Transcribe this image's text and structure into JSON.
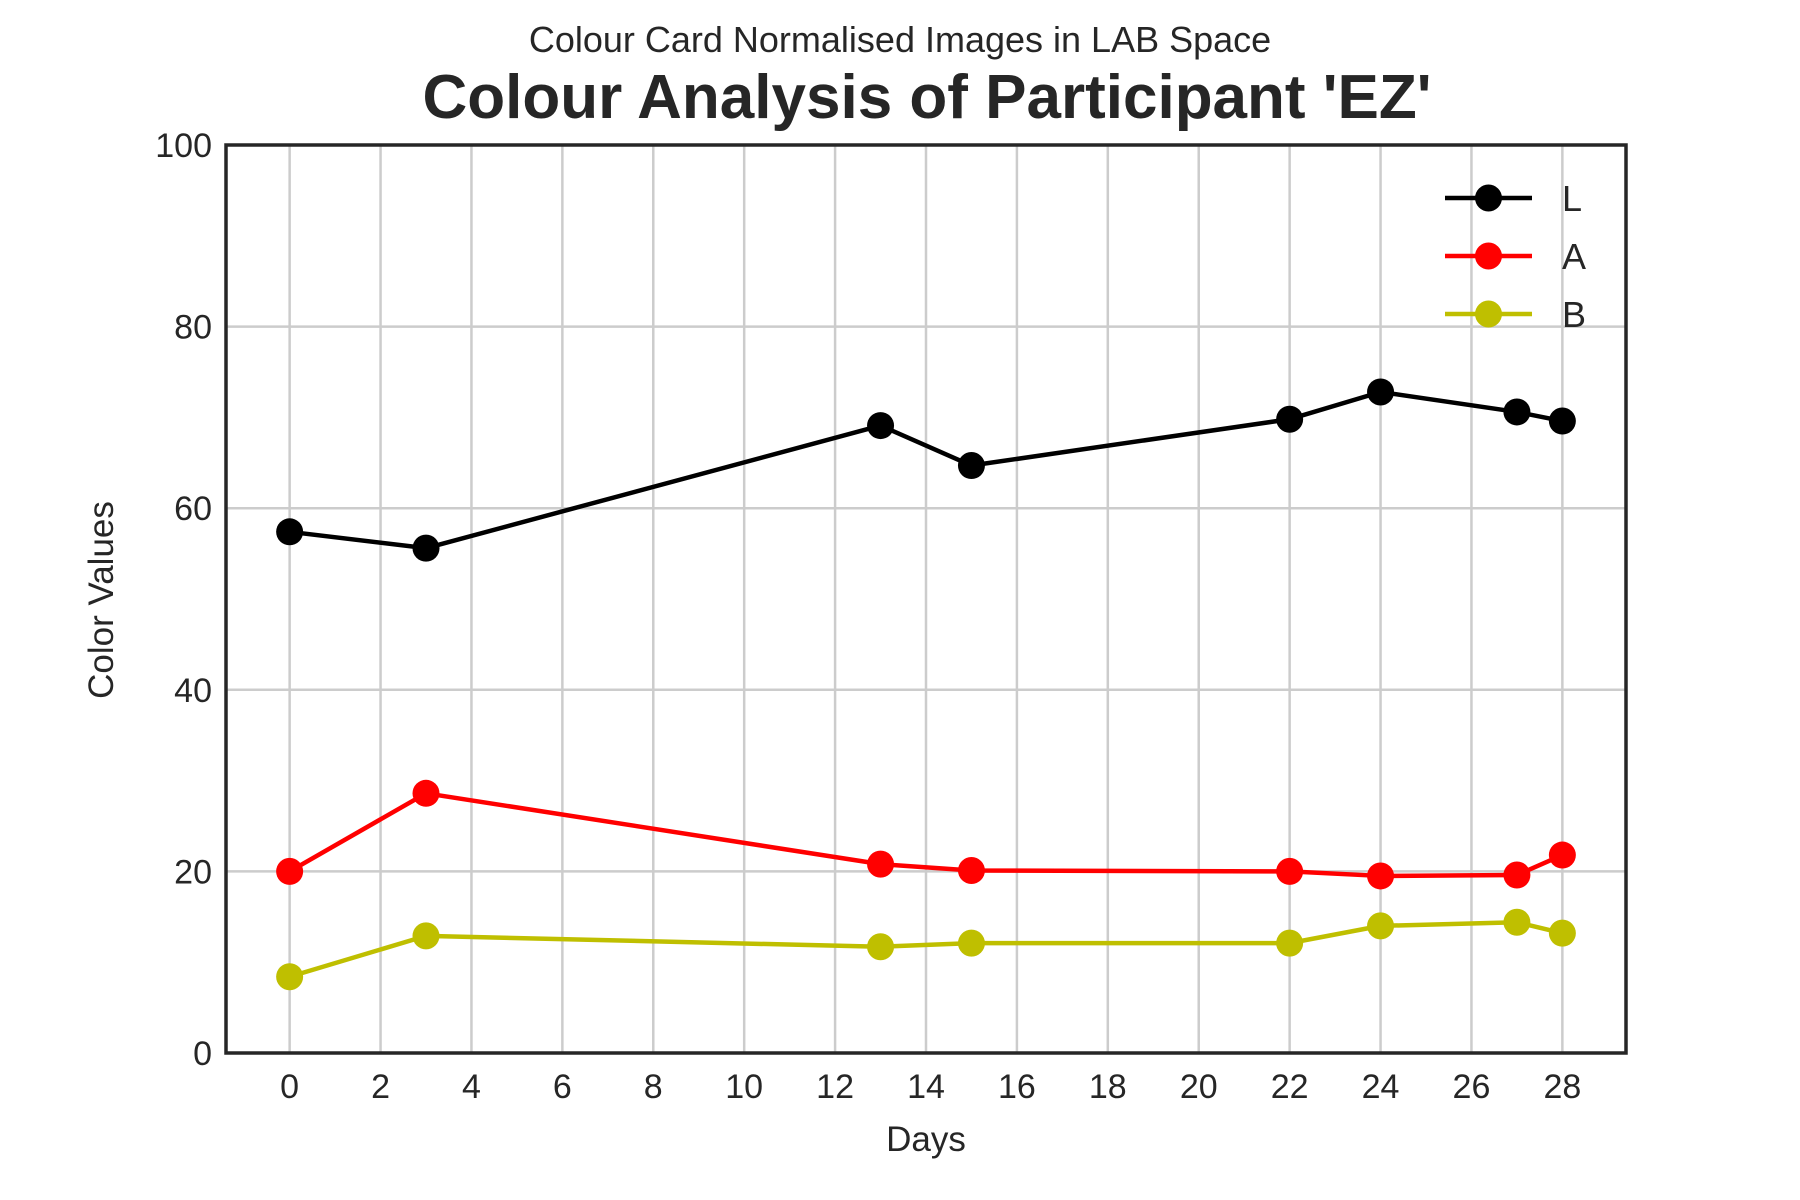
{
  "chart_data": {
    "type": "line",
    "subtitle": "Colour Card Normalised Images in LAB Space",
    "title": "Colour Analysis of Participant 'EZ'",
    "xlabel": "Days",
    "ylabel": "Color Values",
    "xlim": [
      -1.4,
      29.4
    ],
    "ylim": [
      0,
      100
    ],
    "xticks": [
      0,
      2,
      4,
      6,
      8,
      10,
      12,
      14,
      16,
      18,
      20,
      22,
      24,
      26,
      28
    ],
    "yticks": [
      0,
      20,
      40,
      60,
      80,
      100
    ],
    "grid": true,
    "legend_position": "top-right",
    "x": [
      0,
      3,
      13,
      15,
      22,
      24,
      27,
      28
    ],
    "series": [
      {
        "name": "L",
        "color": "#000000",
        "values": [
          57.4,
          55.6,
          69.1,
          64.7,
          69.8,
          72.8,
          70.6,
          69.6
        ]
      },
      {
        "name": "A",
        "color": "#ff0000",
        "values": [
          20.0,
          28.6,
          20.8,
          20.1,
          20.0,
          19.5,
          19.6,
          21.8
        ]
      },
      {
        "name": "B",
        "color": "#bfbf00",
        "values": [
          8.4,
          12.9,
          11.7,
          12.1,
          12.1,
          14.0,
          14.4,
          13.2
        ]
      }
    ]
  }
}
